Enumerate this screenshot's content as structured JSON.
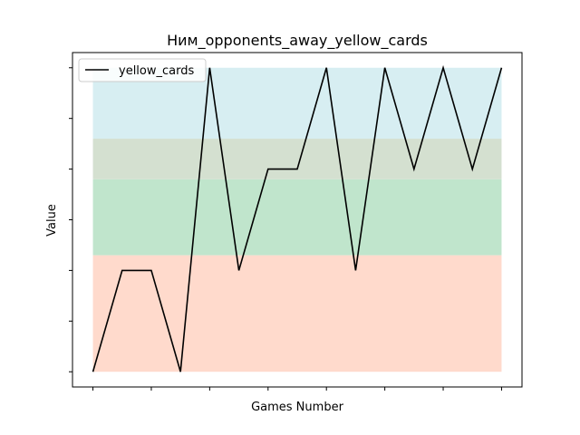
{
  "chart_data": {
    "type": "line",
    "title": "Ним_opponents_away_yellow_cards",
    "xlabel": "Games Number",
    "ylabel": "Value",
    "x": [
      1,
      2,
      3,
      4,
      5,
      6,
      7,
      8,
      9,
      10,
      11,
      12,
      13,
      14,
      15
    ],
    "series": [
      {
        "name": "yellow_cards",
        "color": "#000000",
        "values": [
          0,
          2,
          2,
          0,
          6,
          2,
          4,
          4,
          6,
          2,
          6,
          4,
          6,
          4,
          6
        ]
      }
    ],
    "xlim": [
      0.3,
      15.7
    ],
    "ylim": [
      -0.3,
      6.3
    ],
    "y_ticks": [
      0,
      1,
      2,
      3,
      4,
      5,
      6
    ],
    "x_ticks": [
      1,
      3,
      5,
      7,
      9,
      11,
      13,
      15
    ],
    "tick_labels_shown": false,
    "bands": [
      {
        "from": 0,
        "to": 2.3,
        "color": "#ffdacc"
      },
      {
        "from": 2.3,
        "to": 3.8,
        "color": "#c0e5cc"
      },
      {
        "from": 3.8,
        "to": 4.6,
        "color": "#d4e0d0"
      },
      {
        "from": 4.6,
        "to": 6,
        "color": "#d7eef2"
      }
    ],
    "grid": false,
    "legend_position": "top-left"
  }
}
